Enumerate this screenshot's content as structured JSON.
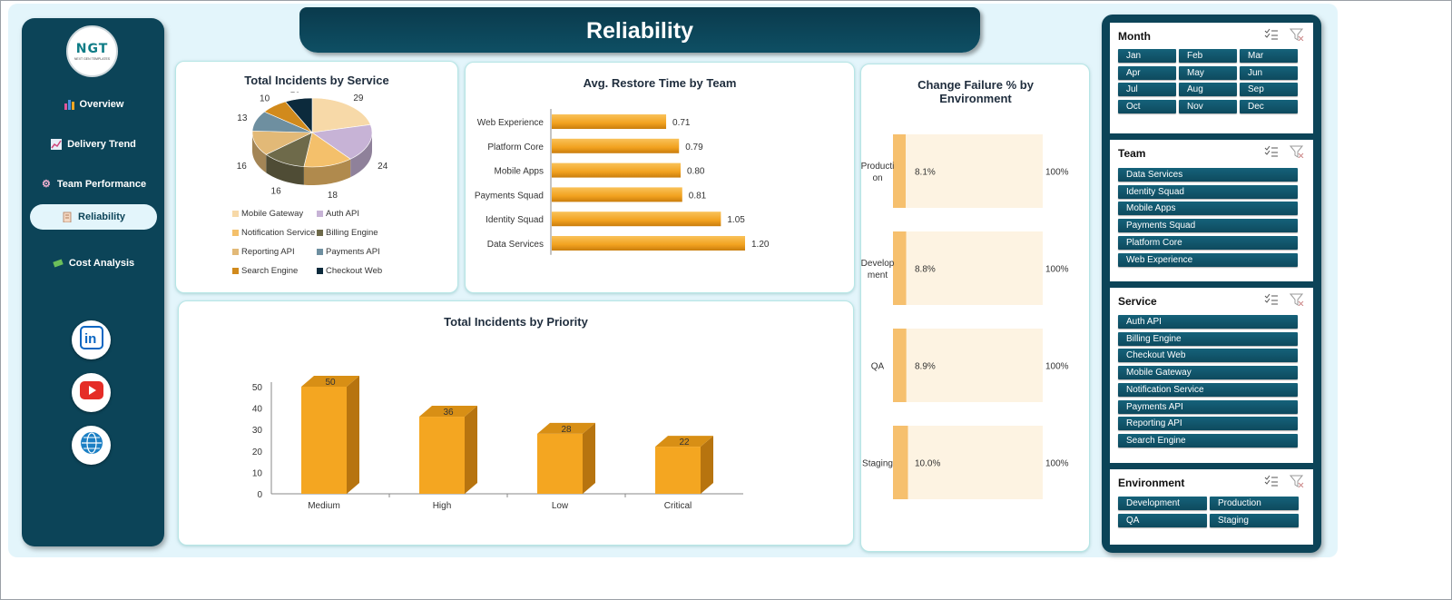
{
  "page_title": "Reliability",
  "logo": {
    "text": "NGT",
    "subtext": "NEXT GEN TEMPLATES"
  },
  "nav": [
    {
      "label": "Overview",
      "icon": "bar-chart-icon"
    },
    {
      "label": "Delivery Trend",
      "icon": "trend-chart-icon"
    },
    {
      "label": "Team Performance",
      "icon": "gear-icon"
    },
    {
      "label": "Reliability",
      "icon": "clipboard-icon",
      "active": true
    },
    {
      "label": "Cost Analysis",
      "icon": "money-icon"
    }
  ],
  "social": [
    "linkedin-icon",
    "youtube-icon",
    "globe-icon"
  ],
  "colors": {
    "sidebar": "#0c4458",
    "accent": "#f5a623",
    "background": "#e3f5fb"
  },
  "charts": {
    "incidents_by_service": {
      "title": "Total Incidents by Service",
      "legend": [
        "Mobile Gateway",
        "Auth API",
        "Notification Service",
        "Billing Engine",
        "Reporting API",
        "Payments API",
        "Search Engine",
        "Checkout Web"
      ]
    },
    "restore_time": {
      "title": "Avg. Restore Time by Team"
    },
    "change_failure": {
      "title": "Change Failure % by Environment"
    },
    "incidents_by_priority": {
      "title": "Total Incidents by Priority"
    }
  },
  "chart_data": [
    {
      "type": "pie",
      "title": "Total Incidents by Service",
      "categories": [
        "Mobile Gateway",
        "Auth API",
        "Notification Service",
        "Billing Engine",
        "Reporting API",
        "Payments API",
        "Search Engine",
        "Checkout Web"
      ],
      "values": [
        29,
        24,
        18,
        16,
        16,
        13,
        10,
        10
      ],
      "colors": [
        "#f7d9a8",
        "#c7b3d6",
        "#f4c06b",
        "#6e6a4a",
        "#e2b977",
        "#6e8fa0",
        "#d18a1c",
        "#0c2a3c"
      ],
      "legend_position": "bottom"
    },
    {
      "type": "bar",
      "orientation": "horizontal",
      "title": "Avg. Restore Time by Team",
      "categories": [
        "Web Experience",
        "Platform Core",
        "Mobile Apps",
        "Payments Squad",
        "Identity Squad",
        "Data Services"
      ],
      "values": [
        0.71,
        0.79,
        0.8,
        0.81,
        1.05,
        1.2
      ],
      "value_labels": [
        "0.71",
        "0.79",
        "0.80",
        "0.81",
        "1.05",
        "1.20"
      ],
      "xlim": [
        0,
        1.2
      ]
    },
    {
      "type": "bar",
      "orientation": "horizontal",
      "title": "Change Failure % by Environment",
      "categories": [
        "Production",
        "Development",
        "QA",
        "Staging"
      ],
      "category_labels": [
        "Producti\non",
        "Develop\nment",
        "QA",
        "Staging"
      ],
      "values": [
        8.1,
        8.8,
        8.9,
        10.0
      ],
      "value_labels": [
        "8.1%",
        "8.8%",
        "8.9%",
        "10.0%"
      ],
      "max_label": "100%",
      "xlim": [
        0,
        100
      ]
    },
    {
      "type": "bar",
      "title": "Total Incidents by Priority",
      "categories": [
        "Medium",
        "High",
        "Low",
        "Critical"
      ],
      "values": [
        50,
        36,
        28,
        22
      ],
      "ylim": [
        0,
        50
      ],
      "yticks": [
        "0",
        "10",
        "20",
        "30",
        "40",
        "50"
      ]
    }
  ],
  "slicers": {
    "month": {
      "title": "Month",
      "items": [
        "Jan",
        "Feb",
        "Mar",
        "Apr",
        "May",
        "Jun",
        "Jul",
        "Aug",
        "Sep",
        "Oct",
        "Nov",
        "Dec"
      ]
    },
    "team": {
      "title": "Team",
      "items": [
        "Data Services",
        "Identity Squad",
        "Mobile Apps",
        "Payments Squad",
        "Platform Core",
        "Web Experience"
      ]
    },
    "service": {
      "title": "Service",
      "items": [
        "Auth API",
        "Billing Engine",
        "Checkout Web",
        "Mobile Gateway",
        "Notification Service",
        "Payments API",
        "Reporting API",
        "Search Engine"
      ]
    },
    "environment": {
      "title": "Environment",
      "items": [
        "Development",
        "Production",
        "QA",
        "Staging"
      ]
    }
  }
}
